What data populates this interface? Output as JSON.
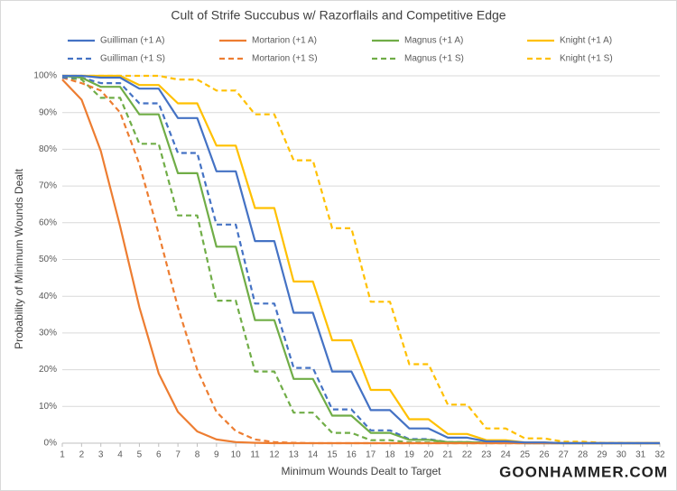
{
  "chart_data": {
    "type": "line",
    "title": "Cult of Strife Succubus w/ Razorflails and Competitive Edge",
    "x_label": "Minimum Wounds Dealt to Target",
    "y_label": "Probability of Minimum Wounds Dealt",
    "watermark": "GOONHAMMER.COM",
    "x": [
      1,
      2,
      3,
      4,
      5,
      6,
      7,
      8,
      9,
      10,
      11,
      12,
      13,
      14,
      15,
      16,
      17,
      18,
      19,
      20,
      21,
      22,
      23,
      24,
      25,
      26,
      27,
      28,
      29,
      30,
      31,
      32
    ],
    "xlim": [
      1,
      32
    ],
    "xticks": [
      1,
      2,
      3,
      4,
      5,
      6,
      7,
      8,
      9,
      10,
      11,
      12,
      13,
      14,
      15,
      16,
      17,
      18,
      19,
      20,
      21,
      22,
      23,
      24,
      25,
      26,
      27,
      28,
      29,
      30,
      31,
      32
    ],
    "ylim": [
      0,
      100
    ],
    "yticks": [
      {
        "value": 0,
        "label": "0%"
      },
      {
        "value": 10,
        "label": "10%"
      },
      {
        "value": 20,
        "label": "20%"
      },
      {
        "value": 30,
        "label": "30%"
      },
      {
        "value": 40,
        "label": "40%"
      },
      {
        "value": 50,
        "label": "50%"
      },
      {
        "value": 60,
        "label": "60%"
      },
      {
        "value": 70,
        "label": "70%"
      },
      {
        "value": 80,
        "label": "80%"
      },
      {
        "value": 90,
        "label": "90%"
      },
      {
        "value": 100,
        "label": "100%"
      }
    ],
    "grid": true,
    "legend": "top",
    "series": [
      {
        "name": "Guilliman (+1 A)",
        "color": "#4472c4",
        "dashed": false,
        "values": [
          100,
          100,
          99.5,
          99.5,
          96.5,
          96.5,
          88.5,
          88.5,
          74,
          74,
          55,
          55,
          35.5,
          35.5,
          19.5,
          19.5,
          9,
          9,
          4,
          4,
          1.5,
          1.5,
          0.5,
          0.5,
          0.2,
          0.2,
          0,
          0,
          0,
          0,
          0,
          0
        ]
      },
      {
        "name": "Mortarion (+1 A)",
        "color": "#ed7d31",
        "dashed": false,
        "values": [
          99,
          93.5,
          79.5,
          59,
          37,
          19,
          8.5,
          3.2,
          1,
          0.3,
          0.1,
          0,
          0,
          0,
          0,
          0,
          0,
          0,
          0,
          0,
          0,
          0,
          0,
          0,
          0,
          0,
          0,
          0,
          0,
          0,
          0,
          0
        ]
      },
      {
        "name": "Magnus (+1 A)",
        "color": "#70ad47",
        "dashed": false,
        "values": [
          100,
          99.5,
          97,
          97,
          89.5,
          89.5,
          73.5,
          73.5,
          53.5,
          53.5,
          33.5,
          33.5,
          17.5,
          17.5,
          7.5,
          7.5,
          2.8,
          2.8,
          0.9,
          0.9,
          0.3,
          0.3,
          0.1,
          0.1,
          0,
          0,
          0,
          0,
          0,
          0,
          0,
          0
        ]
      },
      {
        "name": "Knight (+1 A)",
        "color": "#ffc000",
        "dashed": false,
        "values": [
          100,
          100,
          100,
          100,
          97.5,
          97.5,
          92.5,
          92.5,
          81,
          81,
          64,
          64,
          44,
          44,
          28,
          28,
          14.5,
          14.5,
          6.5,
          6.5,
          2.5,
          2.5,
          0.8,
          0.8,
          0.2,
          0.2,
          0,
          0,
          0,
          0,
          0,
          0
        ]
      },
      {
        "name": "Guilliman (+1 S)",
        "color": "#4472c4",
        "dashed": true,
        "values": [
          99.5,
          99.5,
          98,
          98,
          92.5,
          92.5,
          79,
          79,
          59.5,
          59.5,
          38,
          38,
          20.5,
          20.5,
          9.2,
          9.2,
          3.5,
          3.5,
          1.1,
          1.1,
          0.3,
          0.3,
          0.1,
          0.1,
          0,
          0,
          0,
          0,
          0,
          0,
          0,
          0
        ]
      },
      {
        "name": "Mortarion (+1 S)",
        "color": "#ed7d31",
        "dashed": true,
        "values": [
          99.5,
          98,
          96,
          90,
          76,
          57,
          37,
          20,
          8.5,
          3.3,
          1,
          0.3,
          0.1,
          0,
          0,
          0,
          0,
          0,
          0,
          0,
          0,
          0,
          0,
          0,
          0,
          0,
          0,
          0,
          0,
          0,
          0,
          0
        ]
      },
      {
        "name": "Magnus (+1 S)",
        "color": "#70ad47",
        "dashed": true,
        "values": [
          99.5,
          99,
          94,
          94,
          81.5,
          81.5,
          62,
          62,
          38.8,
          38.8,
          19.5,
          19.5,
          8.3,
          8.3,
          2.8,
          2.8,
          0.8,
          0.8,
          0.2,
          0.2,
          0,
          0,
          0,
          0,
          0,
          0,
          0,
          0,
          0,
          0,
          0,
          0
        ]
      },
      {
        "name": "Knight (+1 S)",
        "color": "#ffc000",
        "dashed": true,
        "values": [
          100,
          100,
          100,
          100,
          100,
          100,
          99,
          99,
          96,
          96,
          89.5,
          89.5,
          77,
          77,
          58.5,
          58.5,
          38.5,
          38.5,
          21.5,
          21.5,
          10.5,
          10.5,
          4,
          4,
          1.3,
          1.3,
          0.4,
          0.4,
          0.1,
          0.1,
          0,
          0
        ]
      }
    ]
  }
}
